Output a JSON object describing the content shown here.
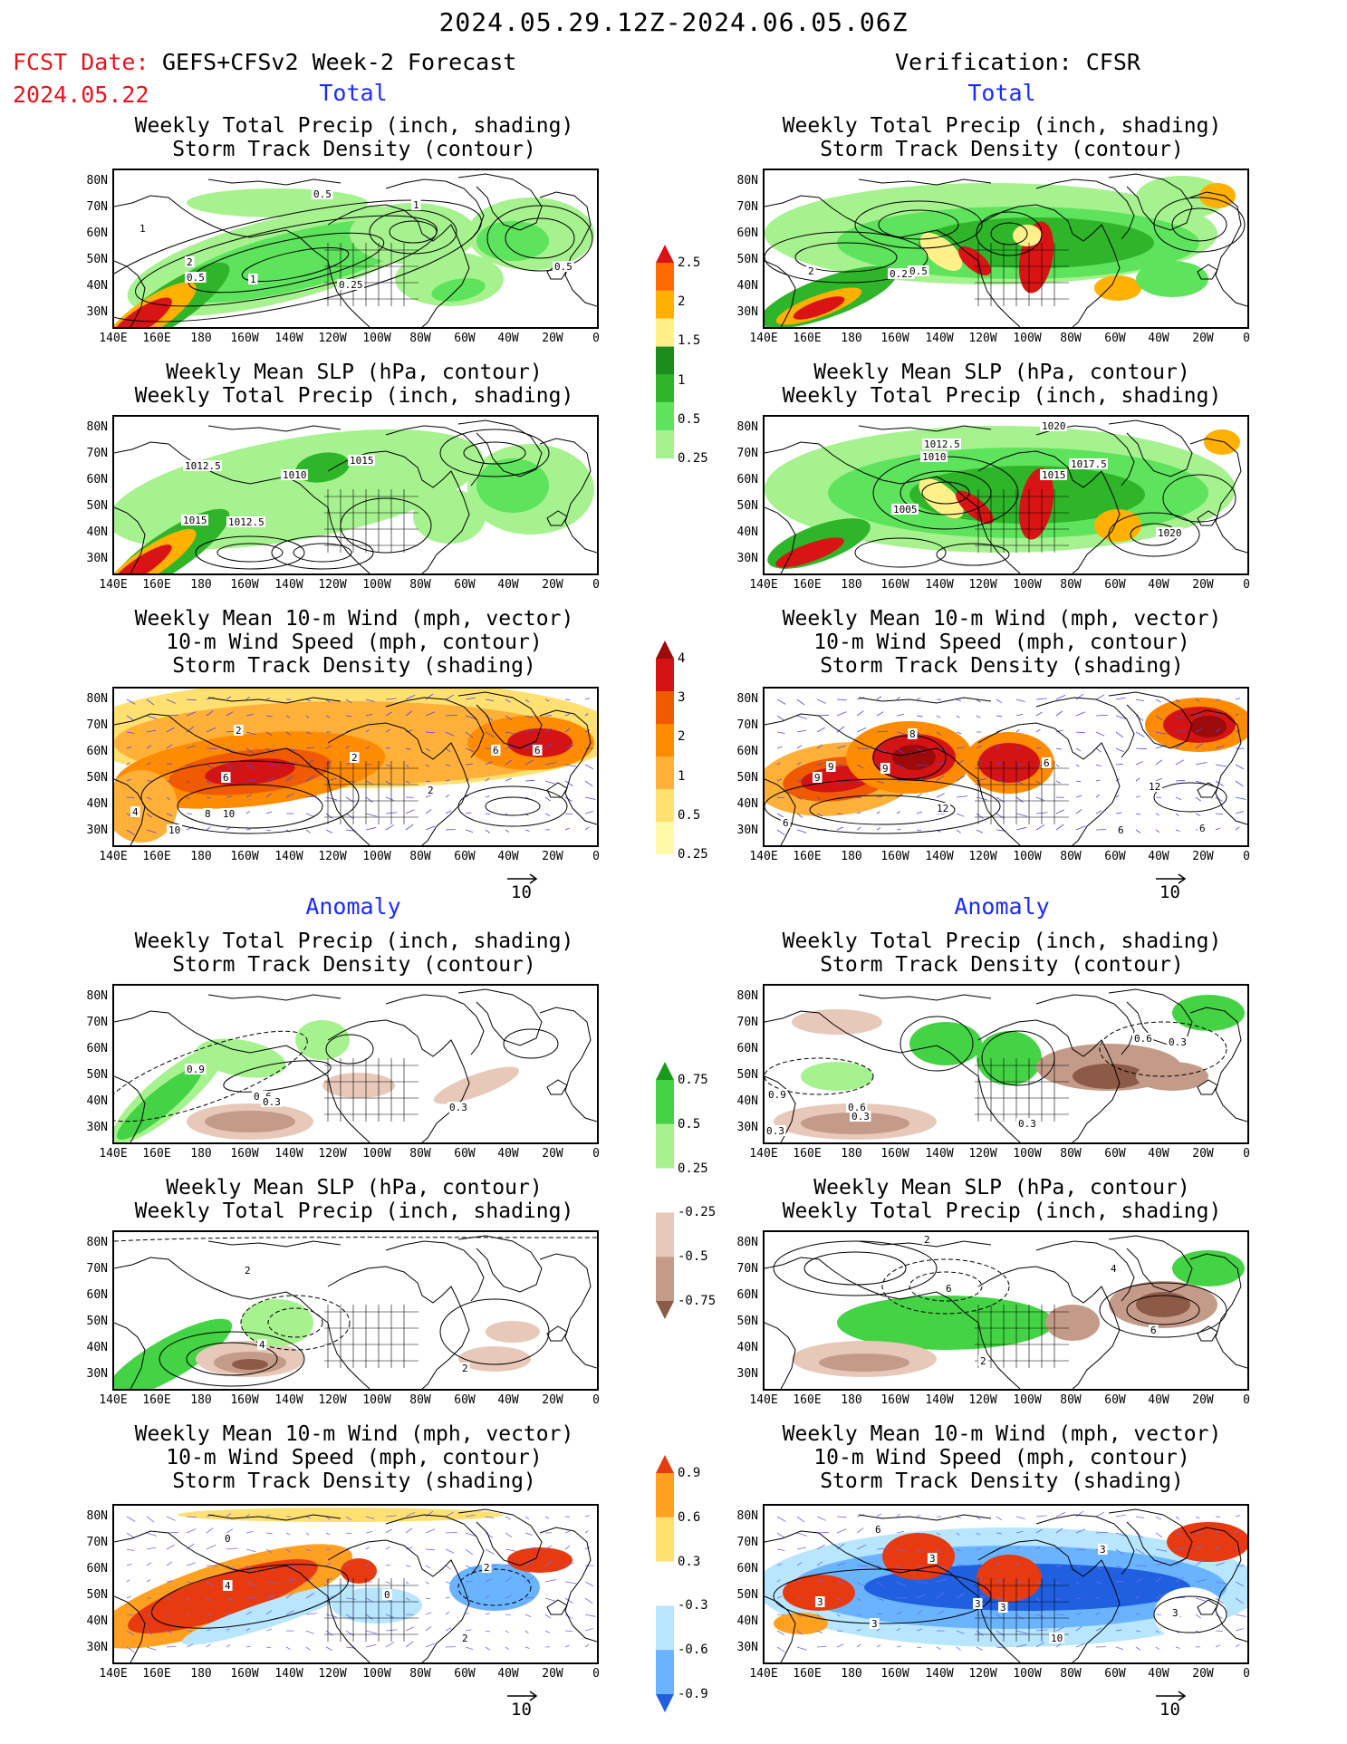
{
  "header": {
    "date_range": "2024.05.29.12Z-2024.06.05.06Z",
    "fcst_label": "FCST Date:",
    "fcst_model": "GEFS+CFSv2 Week-2 Forecast",
    "fcst_date": "2024.05.22",
    "verification": "Verification: CFSR"
  },
  "sections": {
    "total": "Total",
    "anomaly": "Anomaly"
  },
  "titles": {
    "precip_storm": [
      "Weekly Total Precip (inch, shading)",
      "Storm Track Density (contour)"
    ],
    "slp_precip": [
      "Weekly Mean SLP (hPa, contour)",
      "Weekly Total Precip (inch, shading)"
    ],
    "wind": [
      "Weekly Mean 10-m Wind (mph, vector)",
      "10-m Wind Speed (mph, contour)",
      "Storm Track Density (shading)"
    ]
  },
  "axes": {
    "lat_labels": [
      "80N",
      "70N",
      "60N",
      "50N",
      "40N",
      "30N"
    ],
    "lon_labels": [
      "140E",
      "160E",
      "180",
      "160W",
      "140W",
      "120W",
      "100W",
      "80W",
      "60W",
      "40W",
      "20W",
      "0"
    ]
  },
  "colorbars": {
    "precip_total": [
      "0.25",
      "0.5",
      "1",
      "1.5",
      "2",
      "2.5"
    ],
    "storm_total": [
      "0.25",
      "0.5",
      "1",
      "2",
      "3",
      "4"
    ],
    "precip_anom": [
      "0.75",
      "0.5",
      "0.25",
      "-0.25",
      "-0.5",
      "-0.75"
    ],
    "storm_anom": [
      "0.9",
      "0.6",
      "0.3",
      "-0.3",
      "-0.6",
      "-0.9"
    ]
  },
  "colors": {
    "precip": [
      "#a6f28f",
      "#5ee35c",
      "#2fb52a",
      "#1c8c1c",
      "#fff08a",
      "#ffb000",
      "#ff6a00",
      "#d81414"
    ],
    "storm": [
      "#fffaa8",
      "#ffe070",
      "#ffb038",
      "#ff8c00",
      "#f05a00",
      "#d41414",
      "#9c0a0a"
    ],
    "precip_anom_neg": [
      "#e8c8b8",
      "#c49a88",
      "#8c5a46"
    ],
    "precip_anom_pos": [
      "#a6f28f",
      "#44d344",
      "#1a9a1a"
    ],
    "storm_anom_pos": [
      "#ffe070",
      "#ffa020",
      "#e83a10"
    ],
    "storm_anom_neg": [
      "#b8e6ff",
      "#6ab4ff",
      "#2060e0"
    ]
  },
  "vector_label": "10",
  "contour_labels": {
    "fcst_precip_storm": [
      "0.5",
      "1",
      "2",
      "0.5",
      "1",
      "0.25",
      "0.5",
      "1"
    ],
    "fcst_slp": [
      "1012.5",
      "1010",
      "1015",
      "1015",
      "1012.5"
    ],
    "fcst_wind": [
      "2",
      "6",
      "6",
      "6",
      "4",
      "8",
      "10",
      "10",
      "2",
      "2"
    ],
    "ver_precip_storm": [
      "2",
      "0.25",
      "0.5"
    ],
    "ver_slp": [
      "1020",
      "1012.5",
      "1010",
      "1017.5",
      "1015",
      "1005",
      "1020"
    ],
    "ver_wind": [
      "9",
      "9",
      "8",
      "9",
      "6",
      "12",
      "6",
      "6",
      "12",
      "6"
    ],
    "fcst_anom_precip": [
      "0.9",
      "0.6",
      "0.3",
      "0.3"
    ],
    "fcst_anom_slp": [
      "2",
      "4",
      "2"
    ],
    "fcst_anom_wind": [
      "4",
      "2",
      "0",
      "0",
      "2"
    ],
    "ver_anom_precip": [
      "0.9",
      "0.3",
      "0.6",
      "0.3",
      "0.6",
      "0.3",
      "0.3"
    ],
    "ver_anom_slp": [
      "2",
      "4",
      "6",
      "6",
      "2"
    ],
    "ver_anom_wind": [
      "3",
      "3",
      "3",
      "3",
      "3",
      "6",
      "3",
      "10",
      "3"
    ]
  }
}
